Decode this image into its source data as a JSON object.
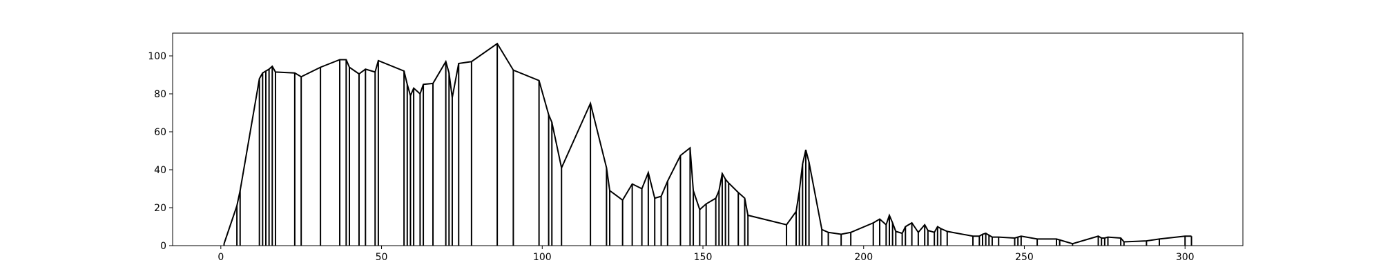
{
  "chart_data": {
    "type": "line",
    "title": "",
    "xlabel": "",
    "ylabel": "",
    "xlim": [
      -15,
      318
    ],
    "ylim": [
      0,
      112
    ],
    "xticks": [
      0,
      50,
      100,
      150,
      200,
      250,
      300
    ],
    "yticks": [
      0,
      20,
      40,
      60,
      80,
      100
    ],
    "xtick_labels": [
      "0",
      "50",
      "100",
      "150",
      "200",
      "250",
      "300"
    ],
    "ytick_labels": [
      "0",
      "20",
      "40",
      "60",
      "80",
      "100"
    ],
    "grid": false,
    "legend": "none",
    "line_color": "#000000",
    "points": [
      [
        1,
        1
      ],
      [
        5,
        21
      ],
      [
        6,
        29
      ],
      [
        12,
        88
      ],
      [
        13,
        91
      ],
      [
        14,
        92
      ],
      [
        15,
        93
      ],
      [
        16,
        94.5
      ],
      [
        17,
        91.5
      ],
      [
        23,
        91
      ],
      [
        25,
        89
      ],
      [
        31,
        94
      ],
      [
        37,
        98
      ],
      [
        39,
        98
      ],
      [
        40,
        94
      ],
      [
        43,
        90.5
      ],
      [
        45,
        93
      ],
      [
        48,
        91.5
      ],
      [
        49,
        97.5
      ],
      [
        57,
        92
      ],
      [
        58,
        85
      ],
      [
        59,
        79
      ],
      [
        60,
        83
      ],
      [
        62,
        80
      ],
      [
        63,
        85
      ],
      [
        66,
        85.5
      ],
      [
        70,
        97
      ],
      [
        71,
        91
      ],
      [
        72,
        78
      ],
      [
        74,
        96
      ],
      [
        78,
        97
      ],
      [
        86,
        106.5
      ],
      [
        91,
        92.5
      ],
      [
        99,
        87
      ],
      [
        102,
        69
      ],
      [
        103,
        65
      ],
      [
        106,
        41
      ],
      [
        115,
        75
      ],
      [
        120,
        41
      ],
      [
        121,
        29
      ],
      [
        125,
        24
      ],
      [
        128,
        32.5
      ],
      [
        131,
        30
      ],
      [
        133,
        38.5
      ],
      [
        135,
        25
      ],
      [
        137,
        26
      ],
      [
        139,
        34
      ],
      [
        143,
        47.5
      ],
      [
        146,
        51.5
      ],
      [
        147,
        29
      ],
      [
        149,
        19
      ],
      [
        151,
        22
      ],
      [
        154,
        25
      ],
      [
        155,
        29
      ],
      [
        156,
        38
      ],
      [
        157,
        35
      ],
      [
        158,
        33
      ],
      [
        161,
        28
      ],
      [
        163,
        25
      ],
      [
        164,
        16
      ],
      [
        176,
        11
      ],
      [
        179,
        18
      ],
      [
        180,
        29
      ],
      [
        181,
        43
      ],
      [
        182,
        50.5
      ],
      [
        183,
        44
      ],
      [
        187,
        8.5
      ],
      [
        189,
        7
      ],
      [
        193,
        6
      ],
      [
        196,
        7
      ],
      [
        203,
        12
      ],
      [
        205,
        14
      ],
      [
        207,
        11
      ],
      [
        208,
        16
      ],
      [
        209,
        12
      ],
      [
        210,
        7.5
      ],
      [
        212,
        6.5
      ],
      [
        213,
        10
      ],
      [
        215,
        12
      ],
      [
        217,
        7
      ],
      [
        219,
        11
      ],
      [
        220,
        8
      ],
      [
        222,
        7
      ],
      [
        223,
        10
      ],
      [
        224,
        9
      ],
      [
        226,
        7.5
      ],
      [
        234,
        5
      ],
      [
        236,
        5
      ],
      [
        237,
        6
      ],
      [
        238,
        6.5
      ],
      [
        239,
        5.5
      ],
      [
        240,
        4.5
      ],
      [
        242,
        4.5
      ],
      [
        247,
        4
      ],
      [
        248,
        4.5
      ],
      [
        249,
        5
      ],
      [
        254,
        3.5
      ],
      [
        260,
        3.5
      ],
      [
        261,
        3
      ],
      [
        265,
        1
      ],
      [
        273,
        5
      ],
      [
        274,
        4
      ],
      [
        275,
        4
      ],
      [
        276,
        4.5
      ],
      [
        280,
        4
      ],
      [
        281,
        2
      ],
      [
        288,
        2.5
      ],
      [
        292,
        3.5
      ],
      [
        300,
        5
      ],
      [
        302,
        5
      ]
    ]
  }
}
